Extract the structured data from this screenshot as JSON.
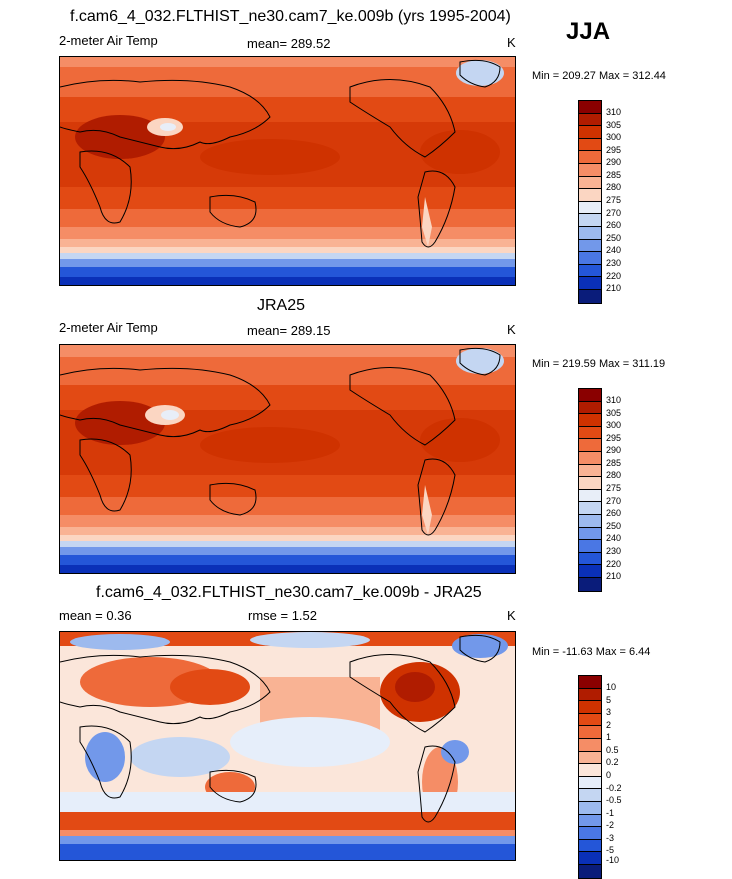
{
  "season": "JJA",
  "panels": [
    {
      "title": "f.cam6_4_032.FLTHIST_ne30.cam7_ke.009b (yrs 1995-2004)",
      "left_label": "2-meter Air Temp",
      "stat_label": "mean= 289.52",
      "stat2_label": "",
      "units": "K",
      "range": "Min = 209.27 Max = 312.44",
      "colorbar": {
        "labels": [
          "310",
          "305",
          "300",
          "295",
          "290",
          "285",
          "280",
          "275",
          "270",
          "260",
          "250",
          "240",
          "230",
          "220",
          "210"
        ],
        "colors": [
          "#8a0000",
          "#b01c00",
          "#cf3200",
          "#e24a14",
          "#ee6a3a",
          "#f58d66",
          "#f9b394",
          "#fbd6c2",
          "#e8eef8",
          "#c4d6f2",
          "#9dbaee",
          "#7298ea",
          "#4a77e4",
          "#2456d8",
          "#0a30b8",
          "#0a1c7a"
        ]
      }
    },
    {
      "title": "JRA25",
      "left_label": "2-meter Air Temp",
      "stat_label": "mean= 289.15",
      "stat2_label": "",
      "units": "K",
      "range": "Min = 219.59 Max = 311.19",
      "colorbar": {
        "labels": [
          "310",
          "305",
          "300",
          "295",
          "290",
          "285",
          "280",
          "275",
          "270",
          "260",
          "250",
          "240",
          "230",
          "220",
          "210"
        ],
        "colors": [
          "#8a0000",
          "#b01c00",
          "#cf3200",
          "#e24a14",
          "#ee6a3a",
          "#f58d66",
          "#f9b394",
          "#fbd6c2",
          "#e8eef8",
          "#c4d6f2",
          "#9dbaee",
          "#7298ea",
          "#4a77e4",
          "#2456d8",
          "#0a30b8",
          "#0a1c7a"
        ]
      }
    },
    {
      "title": "f.cam6_4_032.FLTHIST_ne30.cam7_ke.009b - JRA25",
      "left_label": "mean =   0.36",
      "stat_label": "rmse =   1.52",
      "stat2_label": "",
      "units": "K",
      "range": "Min = -11.63 Max =   6.44",
      "colorbar": {
        "labels": [
          "10",
          "5",
          "3",
          "2",
          "1",
          "0.5",
          "0.2",
          "0",
          "-0.2",
          "-0.5",
          "-1",
          "-2",
          "-3",
          "-5",
          "-10"
        ],
        "colors": [
          "#8a0000",
          "#b01c00",
          "#cf3200",
          "#e24a14",
          "#ee6a3a",
          "#f58d66",
          "#f9b394",
          "#fbe6da",
          "#e6eefa",
          "#c4d6f2",
          "#9dbaee",
          "#7298ea",
          "#4a77e4",
          "#2456d8",
          "#0a30b8",
          "#0a1c7a"
        ]
      }
    }
  ]
}
